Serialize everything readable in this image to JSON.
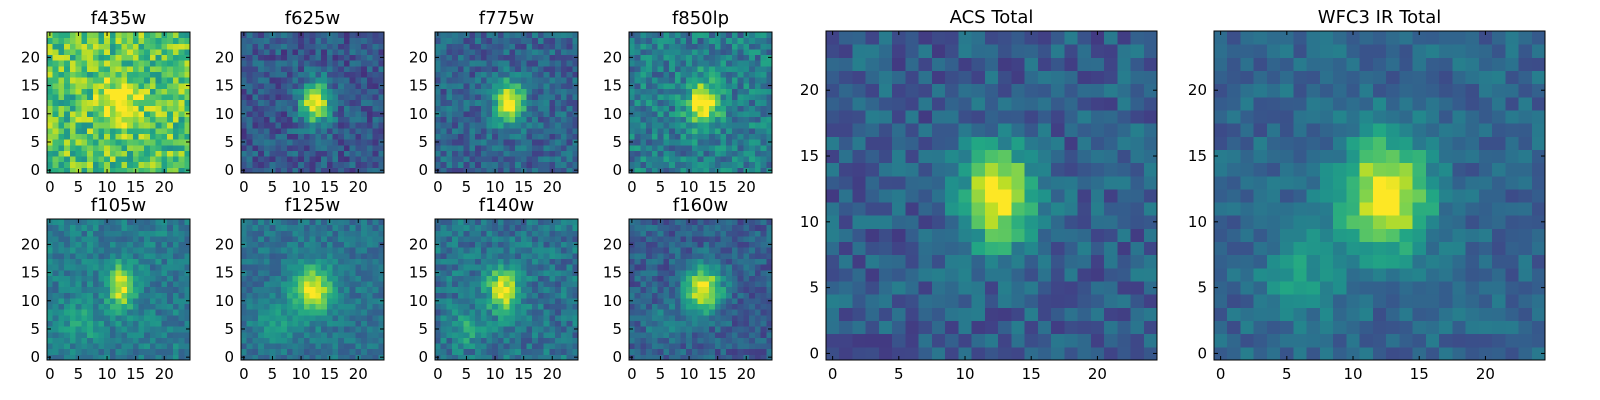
{
  "chart_data": {
    "type": "heatmap",
    "colormap": "viridis",
    "grid_size": 25,
    "panels": [
      {
        "id": "f435w",
        "title": "f435w",
        "xticks": [
          0,
          5,
          10,
          15,
          20
        ],
        "yticks": [
          0,
          5,
          10,
          15,
          20
        ],
        "source": {
          "cx": 12.5,
          "cy": 12.5,
          "sx": 2.5,
          "sy": 3.0,
          "amp": 0.35
        },
        "secondary": null,
        "background": 0.72,
        "noise": 0.22,
        "seed": 11
      },
      {
        "id": "f625w",
        "title": "f625w",
        "xticks": [
          0,
          5,
          10,
          15,
          20
        ],
        "yticks": [
          0,
          5,
          10,
          15,
          20
        ],
        "source": {
          "cx": 12.5,
          "cy": 12.0,
          "sx": 1.8,
          "sy": 2.6,
          "amp": 0.75
        },
        "secondary": null,
        "background": 0.28,
        "noise": 0.14,
        "seed": 23
      },
      {
        "id": "f775w",
        "title": "f775w",
        "xticks": [
          0,
          5,
          10,
          15,
          20
        ],
        "yticks": [
          0,
          5,
          10,
          15,
          20
        ],
        "source": {
          "cx": 12.5,
          "cy": 12.0,
          "sx": 1.8,
          "sy": 2.6,
          "amp": 0.75
        },
        "secondary": null,
        "background": 0.32,
        "noise": 0.14,
        "seed": 37
      },
      {
        "id": "f850lp",
        "title": "f850lp",
        "xticks": [
          0,
          5,
          10,
          15,
          20
        ],
        "yticks": [
          0,
          5,
          10,
          15,
          20
        ],
        "source": {
          "cx": 12.5,
          "cy": 12.0,
          "sx": 2.0,
          "sy": 2.8,
          "amp": 0.65
        },
        "secondary": null,
        "background": 0.42,
        "noise": 0.17,
        "seed": 41
      },
      {
        "id": "f105w",
        "title": "f105w",
        "xticks": [
          0,
          5,
          10,
          15,
          20
        ],
        "yticks": [
          0,
          5,
          10,
          15,
          20
        ],
        "source": {
          "cx": 12.5,
          "cy": 12.5,
          "sx": 1.5,
          "sy": 2.8,
          "amp": 0.55
        },
        "secondary": {
          "cx": 5.5,
          "cy": 6.0,
          "sx": 2.5,
          "sy": 2.5,
          "amp": 0.15
        },
        "background": 0.42,
        "noise": 0.12,
        "seed": 53
      },
      {
        "id": "f125w",
        "title": "f125w",
        "xticks": [
          0,
          5,
          10,
          15,
          20
        ],
        "yticks": [
          0,
          5,
          10,
          15,
          20
        ],
        "source": {
          "cx": 12.0,
          "cy": 12.0,
          "sx": 2.5,
          "sy": 3.0,
          "amp": 0.6
        },
        "secondary": {
          "cx": 5.5,
          "cy": 6.0,
          "sx": 2.5,
          "sy": 2.5,
          "amp": 0.15
        },
        "background": 0.38,
        "noise": 0.1,
        "seed": 67
      },
      {
        "id": "f140w",
        "title": "f140w",
        "xticks": [
          0,
          5,
          10,
          15,
          20
        ],
        "yticks": [
          0,
          5,
          10,
          15,
          20
        ],
        "source": {
          "cx": 11.5,
          "cy": 12.0,
          "sx": 2.0,
          "sy": 2.8,
          "amp": 0.6
        },
        "secondary": {
          "cx": 5.0,
          "cy": 5.5,
          "sx": 1.8,
          "sy": 2.2,
          "amp": 0.25
        },
        "background": 0.38,
        "noise": 0.14,
        "seed": 71
      },
      {
        "id": "f160w",
        "title": "f160w",
        "xticks": [
          0,
          5,
          10,
          15,
          20
        ],
        "yticks": [
          0,
          5,
          10,
          15,
          20
        ],
        "source": {
          "cx": 12.5,
          "cy": 12.0,
          "sx": 2.2,
          "sy": 2.8,
          "amp": 0.75
        },
        "secondary": {
          "cx": 5.5,
          "cy": 6.0,
          "sx": 2.5,
          "sy": 2.5,
          "amp": 0.12
        },
        "background": 0.3,
        "noise": 0.12,
        "seed": 83
      },
      {
        "id": "acs-total",
        "title": "ACS Total",
        "xticks": [
          0,
          5,
          10,
          15,
          20
        ],
        "yticks": [
          0,
          5,
          10,
          15,
          20
        ],
        "source": {
          "cx": 12.5,
          "cy": 12.0,
          "sx": 1.8,
          "sy": 2.6,
          "amp": 0.78
        },
        "secondary": null,
        "background": 0.3,
        "noise": 0.13,
        "seed": 97
      },
      {
        "id": "wfc3-ir-total",
        "title": "WFC3 IR Total",
        "xticks": [
          0,
          5,
          10,
          15,
          20
        ],
        "yticks": [
          0,
          5,
          10,
          15,
          20
        ],
        "source": {
          "cx": 12.5,
          "cy": 12.0,
          "sx": 2.3,
          "sy": 3.0,
          "amp": 0.72
        },
        "secondary": {
          "cx": 6.0,
          "cy": 6.0,
          "sx": 2.0,
          "sy": 2.2,
          "amp": 0.22
        },
        "background": 0.33,
        "noise": 0.1,
        "seed": 101
      }
    ]
  }
}
